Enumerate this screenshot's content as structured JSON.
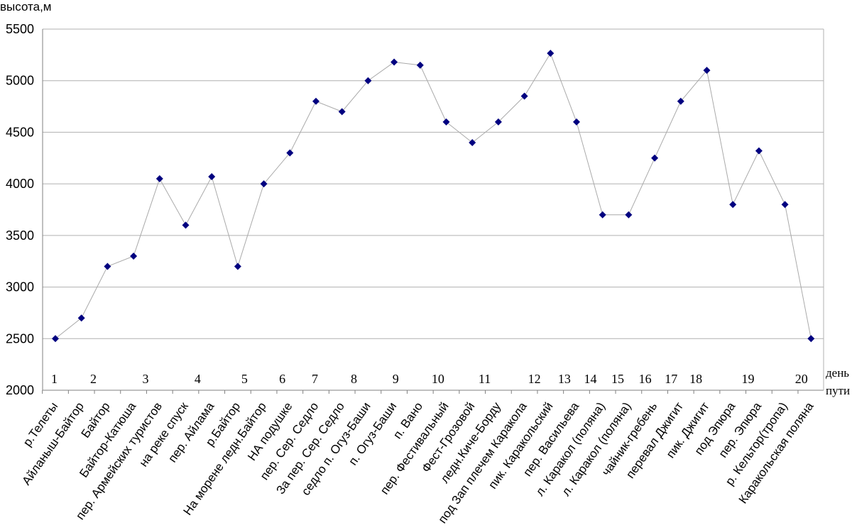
{
  "chart_data": {
    "type": "line",
    "ylabel": "высота,м",
    "ylim": [
      2000,
      5500
    ],
    "yticks": [
      2000,
      2500,
      3000,
      3500,
      4000,
      4500,
      5000,
      5500
    ],
    "grid": "horizontal",
    "categories": [
      "р.Телеты",
      "Айланыш-Байтор",
      "Байтор",
      "Байтор-Катюша",
      "пер. Армейских туристов",
      "на реке спуск",
      "пер. Айлама",
      "р.Байтор",
      "На морене ледн.Байтор",
      "НА подушке",
      "пер. Сер. Седло",
      "За пер. Сер. Седло",
      "седло п. Огуз-Баши",
      "п. Огуз-Баши",
      "п. Вано",
      "пер. Фестивальный",
      "Фест-Грозовой",
      "ледн.Киче-Борду",
      "под Зап плечем Каракола",
      "пик. Каракольский",
      "пер. Васильева",
      "л. Каракол (поляна)",
      "л. Каракол (поляна)",
      "чайник-гребень",
      "перевал Джигит",
      "пик. Джигит",
      "под Эпюра",
      "пер. Эпюра",
      "р. Кельтор(тропа)",
      "Каракольская поляна"
    ],
    "series": [
      {
        "values": [
          2500,
          2700,
          3200,
          3300,
          4050,
          3600,
          4070,
          3200,
          4000,
          4300,
          4800,
          4700,
          5000,
          5180,
          5150,
          4600,
          4400,
          4600,
          4850,
          5265,
          4600,
          3700,
          3700,
          4250,
          4800,
          5100,
          3800,
          4320,
          3800,
          2500
        ],
        "color": "#000080",
        "line_color": "#aaaaaa",
        "marker": "diamond"
      }
    ],
    "day_axis": {
      "label_line1": "день",
      "label_line2": "пути",
      "days": [
        {
          "label": "1",
          "pos": 0
        },
        {
          "label": "2",
          "pos": 1.5
        },
        {
          "label": "3",
          "pos": 3.5
        },
        {
          "label": "4",
          "pos": 5.5
        },
        {
          "label": "5",
          "pos": 7.3
        },
        {
          "label": "6",
          "pos": 8.75
        },
        {
          "label": "7",
          "pos": 10
        },
        {
          "label": "8",
          "pos": 11.5
        },
        {
          "label": "9",
          "pos": 13.1
        },
        {
          "label": "10",
          "pos": 14.6
        },
        {
          "label": "11",
          "pos": 16.4
        },
        {
          "label": "12",
          "pos": 18.3
        },
        {
          "label": "13",
          "pos": 19.45
        },
        {
          "label": "14",
          "pos": 20.45
        },
        {
          "label": "15",
          "pos": 21.5
        },
        {
          "label": "16",
          "pos": 22.55
        },
        {
          "label": "17",
          "pos": 23.55
        },
        {
          "label": "18",
          "pos": 24.5
        },
        {
          "label": "19",
          "pos": 26.5
        },
        {
          "label": "20",
          "pos": 28.55
        }
      ]
    }
  }
}
